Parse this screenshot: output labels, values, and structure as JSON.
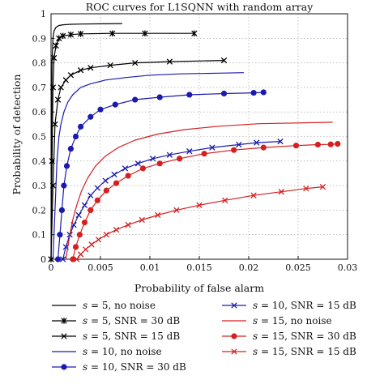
{
  "chart_data": {
    "type": "line",
    "title": "ROC curves for L1SQNN with random array",
    "xlabel": "Probability of false alarm",
    "ylabel": "Probability of detection",
    "xlim": [
      0,
      0.03
    ],
    "ylim": [
      0,
      1.0
    ],
    "x_ticks": [
      0,
      0.005,
      0.01,
      0.015,
      0.02,
      0.025,
      0.03
    ],
    "x_tick_labels": [
      "0",
      "0.005",
      "0.01",
      "0.015",
      "0.02",
      "0.025",
      "0.03"
    ],
    "y_ticks": [
      0,
      0.1,
      0.2,
      0.3,
      0.4,
      0.5,
      0.6,
      0.7,
      0.8,
      0.9,
      1
    ],
    "y_tick_labels": [
      "0",
      "0.1",
      "0.2",
      "0.3",
      "0.4",
      "0.5",
      "0.6",
      "0.7",
      "0.8",
      "0.9",
      "1"
    ],
    "grid": true,
    "legend_position": "bottom",
    "series": [
      {
        "name": "s = 5, no noise",
        "color": "#000000",
        "marker": "none",
        "x": [
          0.0,
          5e-05,
          0.0001,
          0.0002,
          0.0003,
          0.0005,
          0.0008,
          0.0012,
          0.002,
          0.003,
          0.005,
          0.0072
        ],
        "y": [
          0.0,
          0.5,
          0.8,
          0.9,
          0.93,
          0.945,
          0.952,
          0.955,
          0.957,
          0.958,
          0.959,
          0.96
        ]
      },
      {
        "name": "s = 5, SNR = 30 dB",
        "color": "#000000",
        "marker": "asterisk",
        "x": [
          0.0,
          0.0001,
          0.0002,
          0.0003,
          0.0005,
          0.0008,
          0.0012,
          0.002,
          0.003,
          0.0062,
          0.0095,
          0.0145
        ],
        "y": [
          0.0,
          0.4,
          0.7,
          0.82,
          0.87,
          0.9,
          0.91,
          0.915,
          0.918,
          0.92,
          0.92,
          0.92
        ]
      },
      {
        "name": "s = 5, SNR = 15 dB",
        "color": "#000000",
        "marker": "x",
        "x": [
          0.0,
          0.0002,
          0.0004,
          0.0007,
          0.001,
          0.0015,
          0.002,
          0.003,
          0.004,
          0.006,
          0.0085,
          0.012,
          0.0175
        ],
        "y": [
          0.0,
          0.3,
          0.55,
          0.65,
          0.7,
          0.73,
          0.75,
          0.77,
          0.78,
          0.79,
          0.8,
          0.805,
          0.81
        ]
      },
      {
        "name": "s = 10, no noise",
        "color": "#1a1ab0",
        "marker": "none",
        "x": [
          0.0002,
          0.0004,
          0.0006,
          0.0008,
          0.001,
          0.0013,
          0.0017,
          0.0022,
          0.003,
          0.004,
          0.0055,
          0.0075,
          0.01,
          0.013,
          0.017,
          0.0195
        ],
        "y": [
          0.0,
          0.2,
          0.4,
          0.5,
          0.55,
          0.6,
          0.64,
          0.67,
          0.7,
          0.715,
          0.73,
          0.74,
          0.75,
          0.755,
          0.758,
          0.76
        ]
      },
      {
        "name": "s = 10, SNR = 30 dB",
        "color": "#1a1ab0",
        "marker": "dot",
        "x": [
          0.0007,
          0.0009,
          0.0011,
          0.0013,
          0.0016,
          0.002,
          0.0025,
          0.003,
          0.004,
          0.005,
          0.0065,
          0.0085,
          0.011,
          0.014,
          0.0175,
          0.0205,
          0.0215
        ],
        "y": [
          0.0,
          0.1,
          0.2,
          0.3,
          0.38,
          0.45,
          0.5,
          0.54,
          0.58,
          0.61,
          0.63,
          0.65,
          0.66,
          0.67,
          0.675,
          0.678,
          0.68
        ]
      },
      {
        "name": "s = 10, SNR = 15 dB",
        "color": "#1a1ab0",
        "marker": "x",
        "x": [
          0.0012,
          0.0015,
          0.0019,
          0.0023,
          0.0028,
          0.0034,
          0.004,
          0.0047,
          0.0055,
          0.0064,
          0.0075,
          0.0088,
          0.0103,
          0.012,
          0.014,
          0.0163,
          0.019,
          0.0208,
          0.0232
        ],
        "y": [
          0.0,
          0.05,
          0.1,
          0.14,
          0.18,
          0.22,
          0.26,
          0.29,
          0.32,
          0.345,
          0.37,
          0.39,
          0.41,
          0.425,
          0.44,
          0.455,
          0.467,
          0.475,
          0.48
        ]
      },
      {
        "name": "s = 15, no noise",
        "color": "#d42020",
        "marker": "none",
        "x": [
          0.0015,
          0.0017,
          0.0019,
          0.0022,
          0.0026,
          0.0031,
          0.0037,
          0.0045,
          0.0055,
          0.0068,
          0.0085,
          0.0108,
          0.0135,
          0.017,
          0.021,
          0.0285
        ],
        "y": [
          0.0,
          0.05,
          0.1,
          0.16,
          0.22,
          0.28,
          0.33,
          0.38,
          0.42,
          0.455,
          0.485,
          0.51,
          0.528,
          0.542,
          0.552,
          0.558
        ]
      },
      {
        "name": "s = 15, SNR = 30 dB",
        "color": "#d42020",
        "marker": "dot",
        "x": [
          0.0022,
          0.0025,
          0.0029,
          0.0034,
          0.004,
          0.0047,
          0.0056,
          0.0066,
          0.0078,
          0.0093,
          0.011,
          0.013,
          0.0155,
          0.0185,
          0.0215,
          0.0248,
          0.027,
          0.0283,
          0.029
        ],
        "y": [
          0.0,
          0.05,
          0.1,
          0.15,
          0.2,
          0.24,
          0.28,
          0.31,
          0.34,
          0.37,
          0.39,
          0.41,
          0.43,
          0.445,
          0.455,
          0.463,
          0.467,
          0.468,
          0.47
        ]
      },
      {
        "name": "s = 15, SNR = 15 dB",
        "color": "#d42020",
        "marker": "x",
        "x": [
          0.0026,
          0.003,
          0.0035,
          0.0041,
          0.0048,
          0.0056,
          0.0066,
          0.0078,
          0.0092,
          0.0108,
          0.0127,
          0.015,
          0.0176,
          0.0205,
          0.0233,
          0.0258,
          0.0275
        ],
        "y": [
          0.0,
          0.02,
          0.04,
          0.06,
          0.08,
          0.1,
          0.12,
          0.14,
          0.16,
          0.18,
          0.2,
          0.22,
          0.24,
          0.26,
          0.275,
          0.288,
          0.295
        ]
      }
    ]
  },
  "legend_labels": [
    {
      "symbol": "s",
      "rest": " = 5, no noise"
    },
    {
      "symbol": "s",
      "rest": " = 5, SNR = 30 dB"
    },
    {
      "symbol": "s",
      "rest": " = 5, SNR = 15 dB"
    },
    {
      "symbol": "s",
      "rest": " = 10, no noise"
    },
    {
      "symbol": "s",
      "rest": " = 10, SNR = 30 dB"
    },
    {
      "symbol": "s",
      "rest": " = 10, SNR = 15 dB"
    },
    {
      "symbol": "s",
      "rest": " = 15, no noise"
    },
    {
      "symbol": "s",
      "rest": " = 15, SNR = 30 dB"
    },
    {
      "symbol": "s",
      "rest": " = 15, SNR = 15 dB"
    }
  ]
}
